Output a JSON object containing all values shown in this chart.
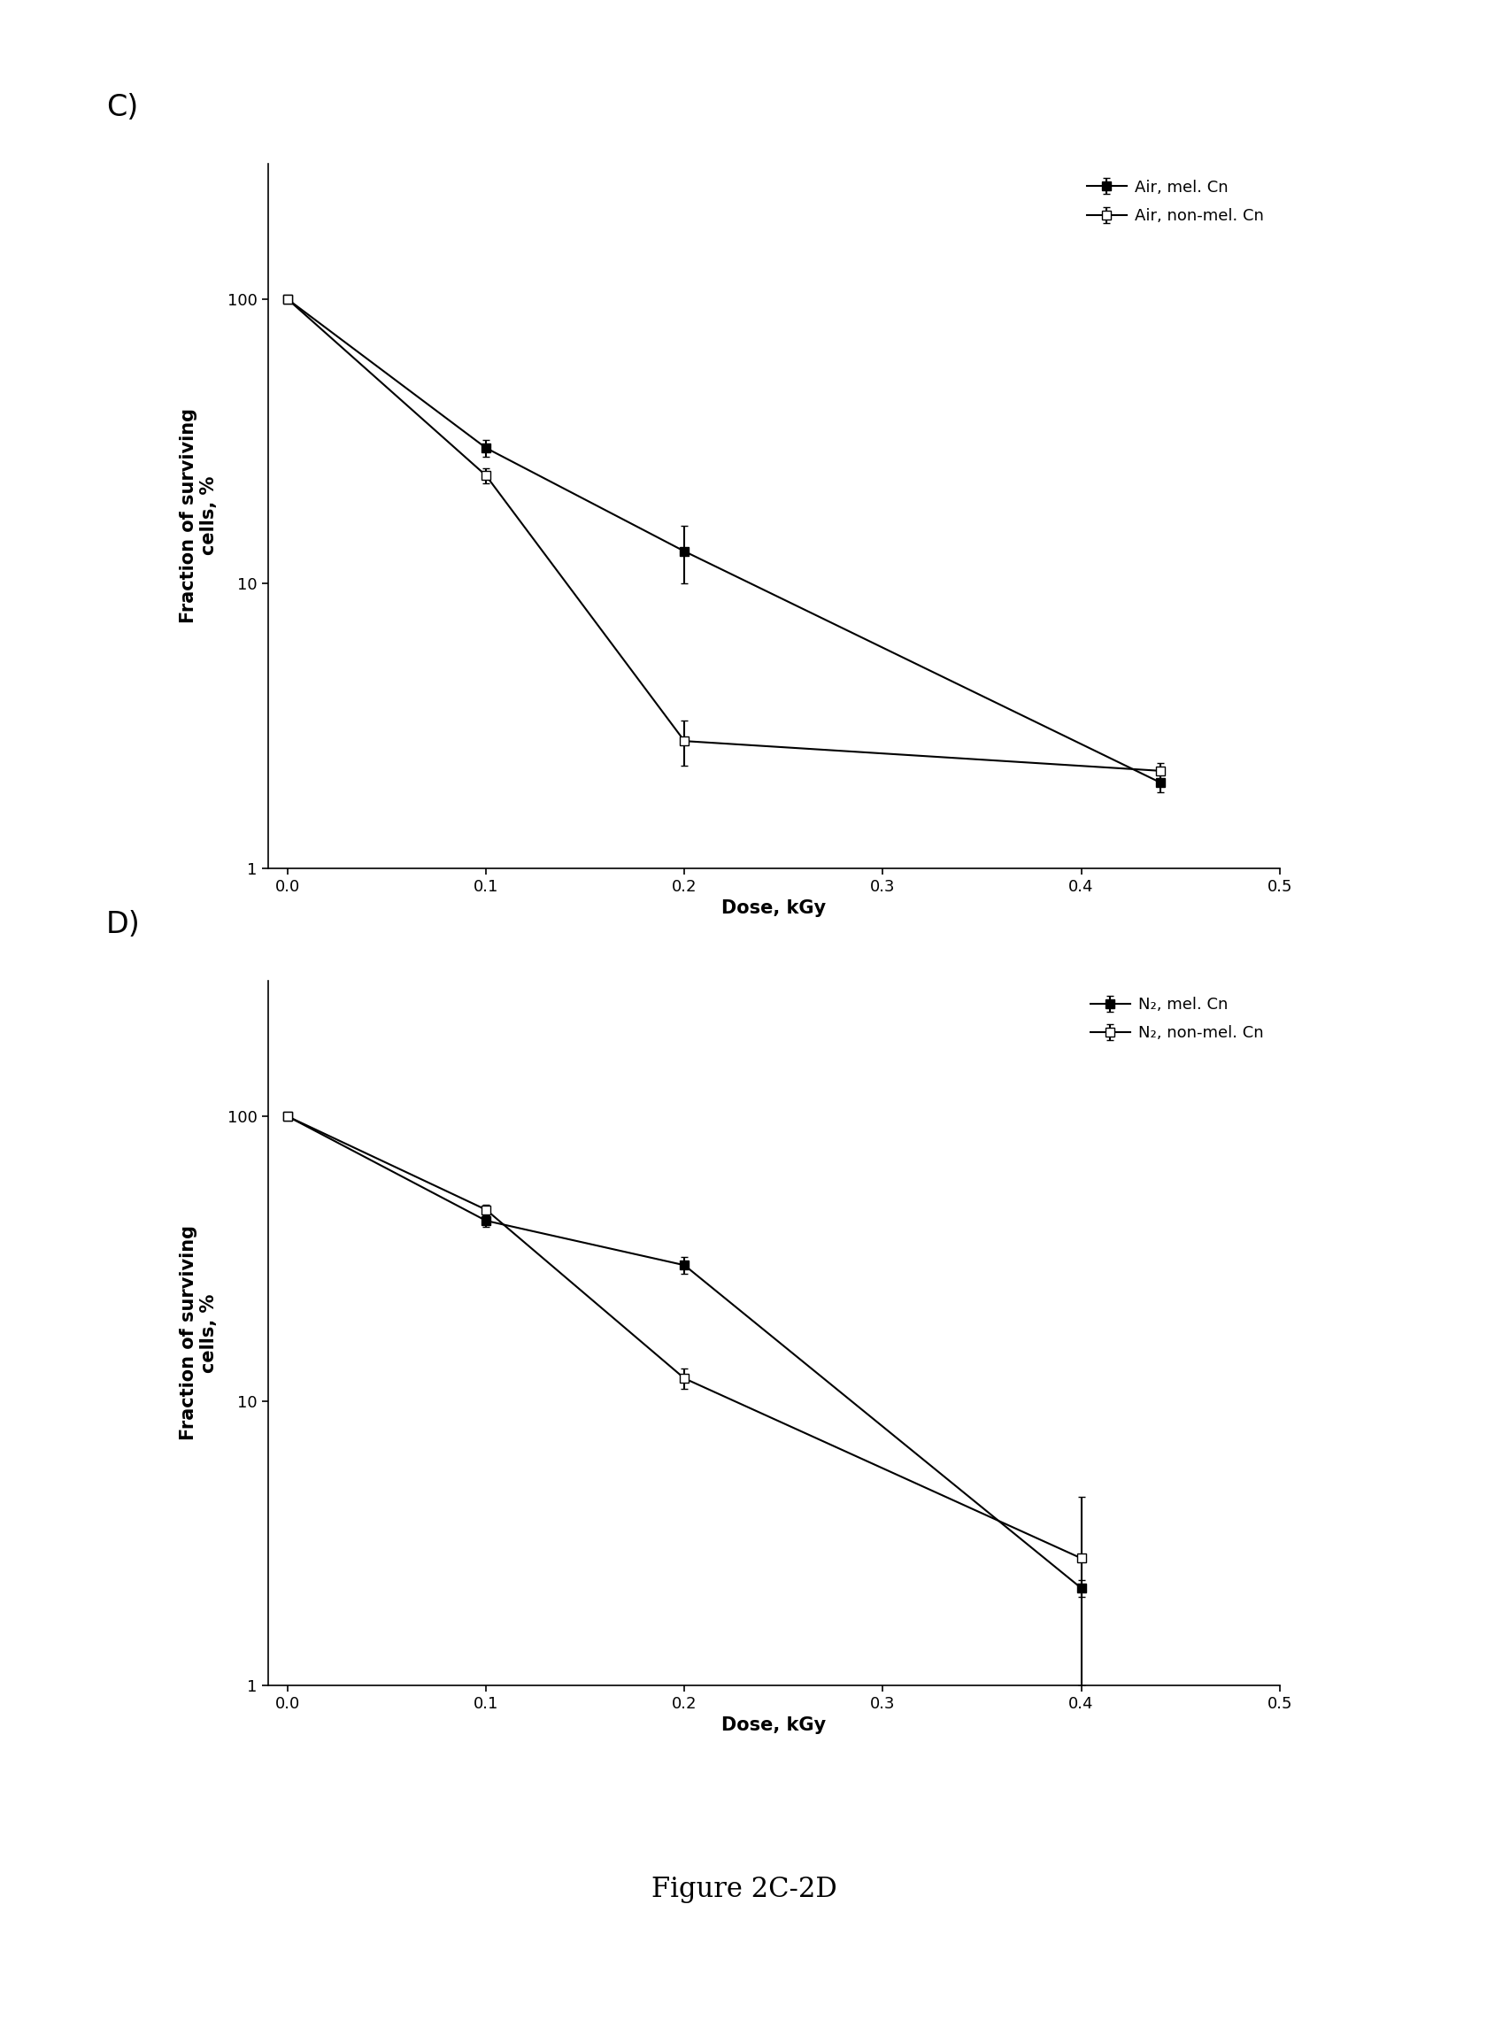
{
  "panel_C": {
    "label": "C)",
    "series1": {
      "label": "Air, mel. Cn",
      "x": [
        0.0,
        0.1,
        0.2,
        0.44
      ],
      "y": [
        100,
        30,
        13,
        2.0
      ],
      "yerr": [
        0,
        2,
        3,
        0.15
      ],
      "marker": "s",
      "color": "black"
    },
    "series2": {
      "label": "Air, non-mel. Cn",
      "x": [
        0.0,
        0.1,
        0.2,
        0.44
      ],
      "y": [
        100,
        24,
        2.8,
        2.2
      ],
      "yerr": [
        0,
        1.5,
        0.5,
        0.15
      ],
      "marker": "s",
      "color": "black"
    },
    "xlabel": "Dose, kGy",
    "ylabel": "Fraction of surviving\ncells, %",
    "xlim": [
      -0.01,
      0.5
    ],
    "ylim": [
      1,
      300
    ],
    "xticks": [
      0.0,
      0.1,
      0.2,
      0.3,
      0.4,
      0.5
    ],
    "xtick_labels": [
      "0.0",
      "0.1",
      "0.2",
      "0.3",
      "0.4",
      "0.5"
    ],
    "yticks": [
      1,
      10,
      100
    ],
    "ytick_labels": [
      "1",
      "10",
      "100"
    ]
  },
  "panel_D": {
    "label": "D)",
    "series1": {
      "label": "N₂, mel. Cn",
      "x": [
        0.0,
        0.1,
        0.2,
        0.4
      ],
      "y": [
        100,
        43,
        30,
        2.2
      ],
      "yerr": [
        0,
        2,
        2,
        0.15
      ],
      "marker": "s",
      "color": "black"
    },
    "series2": {
      "label": "N₂, non-mel. Cn",
      "x": [
        0.0,
        0.1,
        0.2,
        0.4
      ],
      "y": [
        100,
        47,
        12,
        2.8
      ],
      "yerr": [
        0,
        2,
        1,
        1.8
      ],
      "marker": "s",
      "color": "black"
    },
    "xlabel": "Dose, kGy",
    "ylabel": "Fraction of surviving\ncells, %",
    "xlim": [
      -0.01,
      0.5
    ],
    "ylim": [
      1,
      300
    ],
    "xticks": [
      0.0,
      0.1,
      0.2,
      0.3,
      0.4,
      0.5
    ],
    "xtick_labels": [
      "0.0",
      "0.1",
      "0.2",
      "0.3",
      "0.4",
      "0.5"
    ],
    "yticks": [
      1,
      10,
      100
    ],
    "ytick_labels": [
      "1",
      "10",
      "100"
    ]
  },
  "figure_caption": "Figure 2C-2D",
  "background_color": "#ffffff",
  "line_width": 1.5,
  "marker_size": 7,
  "font_size_label": 15,
  "font_size_tick": 13,
  "font_size_legend": 13,
  "font_size_panel_label": 24,
  "font_size_caption": 22
}
